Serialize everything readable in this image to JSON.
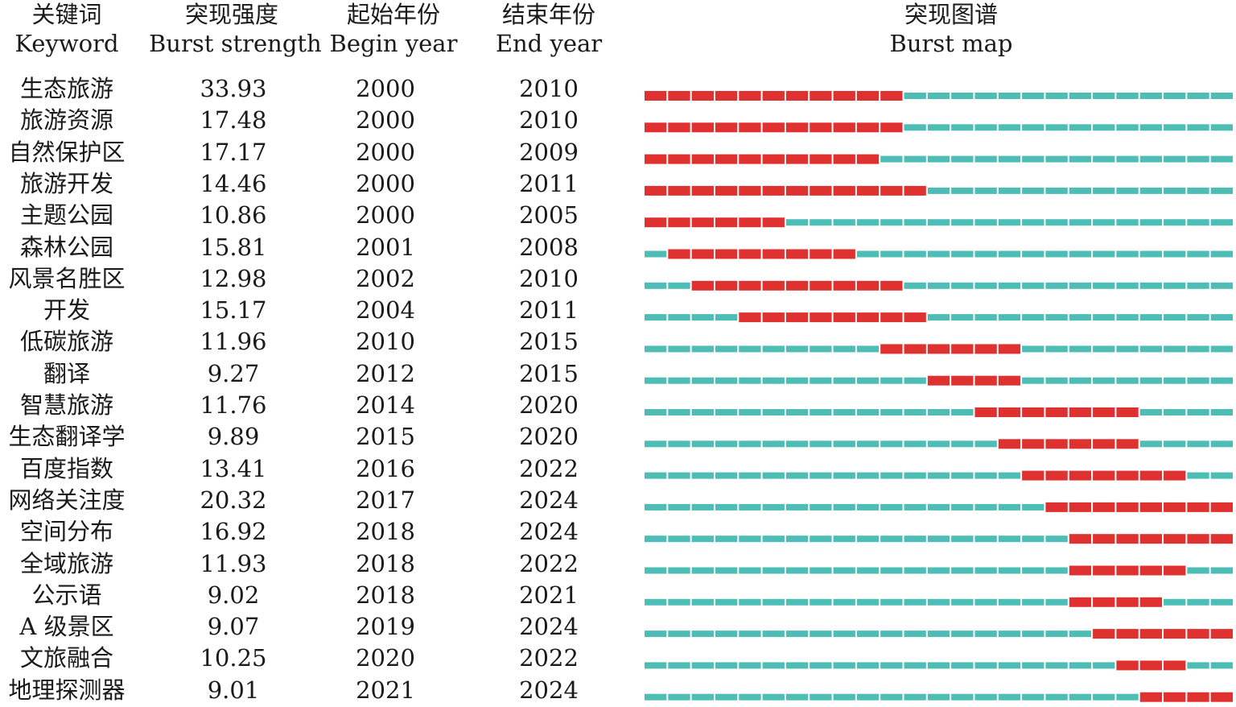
{
  "headers": {
    "keyword_zh": "关键词",
    "keyword_en": "Keyword",
    "strength_zh": "突现强度",
    "strength_en": "Burst strength",
    "begin_zh": "起始年份",
    "begin_en": "Begin year",
    "end_zh": "结束年份",
    "end_en": "End year",
    "map_zh": "突现图谱",
    "map_en": "Burst map"
  },
  "colors": {
    "burst": "#e03131",
    "base": "#4dbdb5",
    "text": "#1a1a1a"
  },
  "chart_data": {
    "type": "table",
    "year_range": [
      2000,
      2024
    ],
    "columns": [
      "Keyword",
      "Burst strength",
      "Begin year",
      "End year",
      "Burst map"
    ],
    "rows": [
      {
        "keyword": "生态旅游",
        "strength": "33.93",
        "begin": "2000",
        "end": "2010"
      },
      {
        "keyword": "旅游资源",
        "strength": "17.48",
        "begin": "2000",
        "end": "2010"
      },
      {
        "keyword": "自然保护区",
        "strength": "17.17",
        "begin": "2000",
        "end": "2009"
      },
      {
        "keyword": "旅游开发",
        "strength": "14.46",
        "begin": "2000",
        "end": "2011"
      },
      {
        "keyword": "主题公园",
        "strength": "10.86",
        "begin": "2000",
        "end": "2005"
      },
      {
        "keyword": "森林公园",
        "strength": "15.81",
        "begin": "2001",
        "end": "2008"
      },
      {
        "keyword": "风景名胜区",
        "strength": "12.98",
        "begin": "2002",
        "end": "2010"
      },
      {
        "keyword": "开发",
        "strength": "15.17",
        "begin": "2004",
        "end": "2011"
      },
      {
        "keyword": "低碳旅游",
        "strength": "11.96",
        "begin": "2010",
        "end": "2015"
      },
      {
        "keyword": "翻译",
        "strength": "9.27",
        "begin": "2012",
        "end": "2015"
      },
      {
        "keyword": "智慧旅游",
        "strength": "11.76",
        "begin": "2014",
        "end": "2020"
      },
      {
        "keyword": "生态翻译学",
        "strength": "9.89",
        "begin": "2015",
        "end": "2020"
      },
      {
        "keyword": "百度指数",
        "strength": "13.41",
        "begin": "2016",
        "end": "2022"
      },
      {
        "keyword": "网络关注度",
        "strength": "20.32",
        "begin": "2017",
        "end": "2024"
      },
      {
        "keyword": "空间分布",
        "strength": "16.92",
        "begin": "2018",
        "end": "2024"
      },
      {
        "keyword": "全域旅游",
        "strength": "11.93",
        "begin": "2018",
        "end": "2022"
      },
      {
        "keyword": "公示语",
        "strength": "9.02",
        "begin": "2018",
        "end": "2021"
      },
      {
        "keyword": "A 级景区",
        "strength": "9.07",
        "begin": "2019",
        "end": "2024"
      },
      {
        "keyword": "文旅融合",
        "strength": "10.25",
        "begin": "2020",
        "end": "2022"
      },
      {
        "keyword": "地理探测器",
        "strength": "9.01",
        "begin": "2021",
        "end": "2024"
      }
    ]
  }
}
